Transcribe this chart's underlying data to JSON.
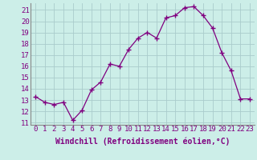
{
  "x": [
    0,
    1,
    2,
    3,
    4,
    5,
    6,
    7,
    8,
    9,
    10,
    11,
    12,
    13,
    14,
    15,
    16,
    17,
    18,
    19,
    20,
    21,
    22,
    23
  ],
  "y": [
    13.3,
    12.8,
    12.6,
    12.8,
    11.2,
    12.1,
    13.9,
    14.6,
    16.2,
    16.0,
    17.5,
    18.5,
    19.0,
    18.5,
    20.3,
    20.5,
    21.2,
    21.3,
    20.5,
    19.4,
    17.2,
    15.6,
    13.1,
    13.1
  ],
  "line_color": "#800080",
  "marker": "D",
  "marker_size": 2.2,
  "bg_color": "#cceee8",
  "grid_color": "#aacccc",
  "xlabel": "Windchill (Refroidissement éolien,°C)",
  "xlabel_fontsize": 7,
  "ytick_labels": [
    "11",
    "12",
    "13",
    "14",
    "15",
    "16",
    "17",
    "18",
    "19",
    "20",
    "21"
  ],
  "ytick_values": [
    11,
    12,
    13,
    14,
    15,
    16,
    17,
    18,
    19,
    20,
    21
  ],
  "xtick_labels": [
    "0",
    "1",
    "2",
    "3",
    "4",
    "5",
    "6",
    "7",
    "8",
    "9",
    "10",
    "11",
    "12",
    "13",
    "14",
    "15",
    "16",
    "17",
    "18",
    "19",
    "20",
    "21",
    "22",
    "23"
  ],
  "ylim": [
    10.8,
    21.6
  ],
  "xlim": [
    -0.5,
    23.5
  ],
  "tick_fontsize": 6.5
}
